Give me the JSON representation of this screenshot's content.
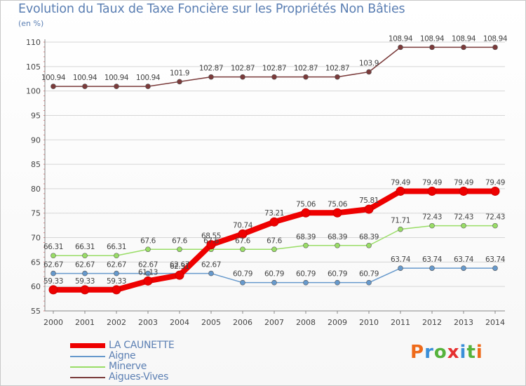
{
  "chart_data": {
    "type": "line",
    "title": "Evolution du Taux de Taxe Foncière sur les Propriétés Non Bâties",
    "ylabel": "(en %)",
    "xlabel": "",
    "x": [
      "2000",
      "2001",
      "2002",
      "2003",
      "2004",
      "2005",
      "2006",
      "2007",
      "2008",
      "2009",
      "2010",
      "2011",
      "2012",
      "2013",
      "2014"
    ],
    "ylim": [
      55,
      110
    ],
    "yticks": [
      55,
      60,
      65,
      70,
      75,
      80,
      85,
      90,
      95,
      100,
      105,
      110
    ],
    "series": [
      {
        "name": "LA CAUNETTE",
        "color": "#ee0000",
        "values": [
          59.33,
          59.33,
          59.33,
          61.13,
          62.31,
          68.55,
          70.74,
          73.21,
          75.06,
          75.06,
          75.81,
          79.49,
          79.49,
          79.49,
          79.49
        ],
        "labels": [
          "59.33",
          "59.33",
          "59.33",
          "61.13",
          "62.31",
          "68.55",
          "70.74",
          "73.21",
          "75.06",
          "75.06",
          "75.81",
          "79.49",
          "79.49",
          "79.49",
          "79.49"
        ]
      },
      {
        "name": "Aigne",
        "color": "#6699cc",
        "values": [
          62.67,
          62.67,
          62.67,
          62.67,
          62.67,
          62.67,
          60.79,
          60.79,
          60.79,
          60.79,
          60.79,
          63.74,
          63.74,
          63.74,
          63.74
        ],
        "labels": [
          "62.67",
          "62.67",
          "62.67",
          "62.67",
          "62.67",
          "62.67",
          "60.79",
          "60.79",
          "60.79",
          "60.79",
          "60.79",
          "63.74",
          "63.74",
          "63.74",
          "63.74"
        ]
      },
      {
        "name": "Minerve",
        "color": "#99dd66",
        "values": [
          66.31,
          66.31,
          66.31,
          67.6,
          67.6,
          67.6,
          67.6,
          67.6,
          68.39,
          68.39,
          68.39,
          71.71,
          72.43,
          72.43,
          72.43
        ],
        "labels": [
          "66.31",
          "66.31",
          "66.31",
          "67.6",
          "67.6",
          "67.6",
          "67.6",
          "67.6",
          "68.39",
          "68.39",
          "68.39",
          "71.71",
          "72.43",
          "72.43",
          "72.43"
        ]
      },
      {
        "name": "Aigues-Vives",
        "color": "#7a3a3a",
        "values": [
          100.94,
          100.94,
          100.94,
          100.94,
          101.9,
          102.87,
          102.87,
          102.87,
          102.87,
          102.87,
          103.9,
          108.94,
          108.94,
          108.94,
          108.94
        ],
        "labels": [
          "100.94",
          "100.94",
          "100.94",
          "100.94",
          "101.9",
          "102.87",
          "102.87",
          "102.87",
          "102.87",
          "102.87",
          "103.9",
          "108.94",
          "108.94",
          "108.94",
          "108.94"
        ]
      }
    ]
  },
  "legend": {
    "items": [
      "LA CAUNETTE",
      "Aigne",
      "Minerve",
      "Aigues-Vives"
    ]
  },
  "brand": {
    "letters": [
      "P",
      "r",
      "o",
      "x",
      "i",
      "t",
      "i"
    ],
    "colors": [
      "#ee6a1a",
      "#3a8fd8",
      "#56b33c",
      "#e53030",
      "#3a8fd8",
      "#56b33c",
      "#ee6a1a"
    ]
  }
}
